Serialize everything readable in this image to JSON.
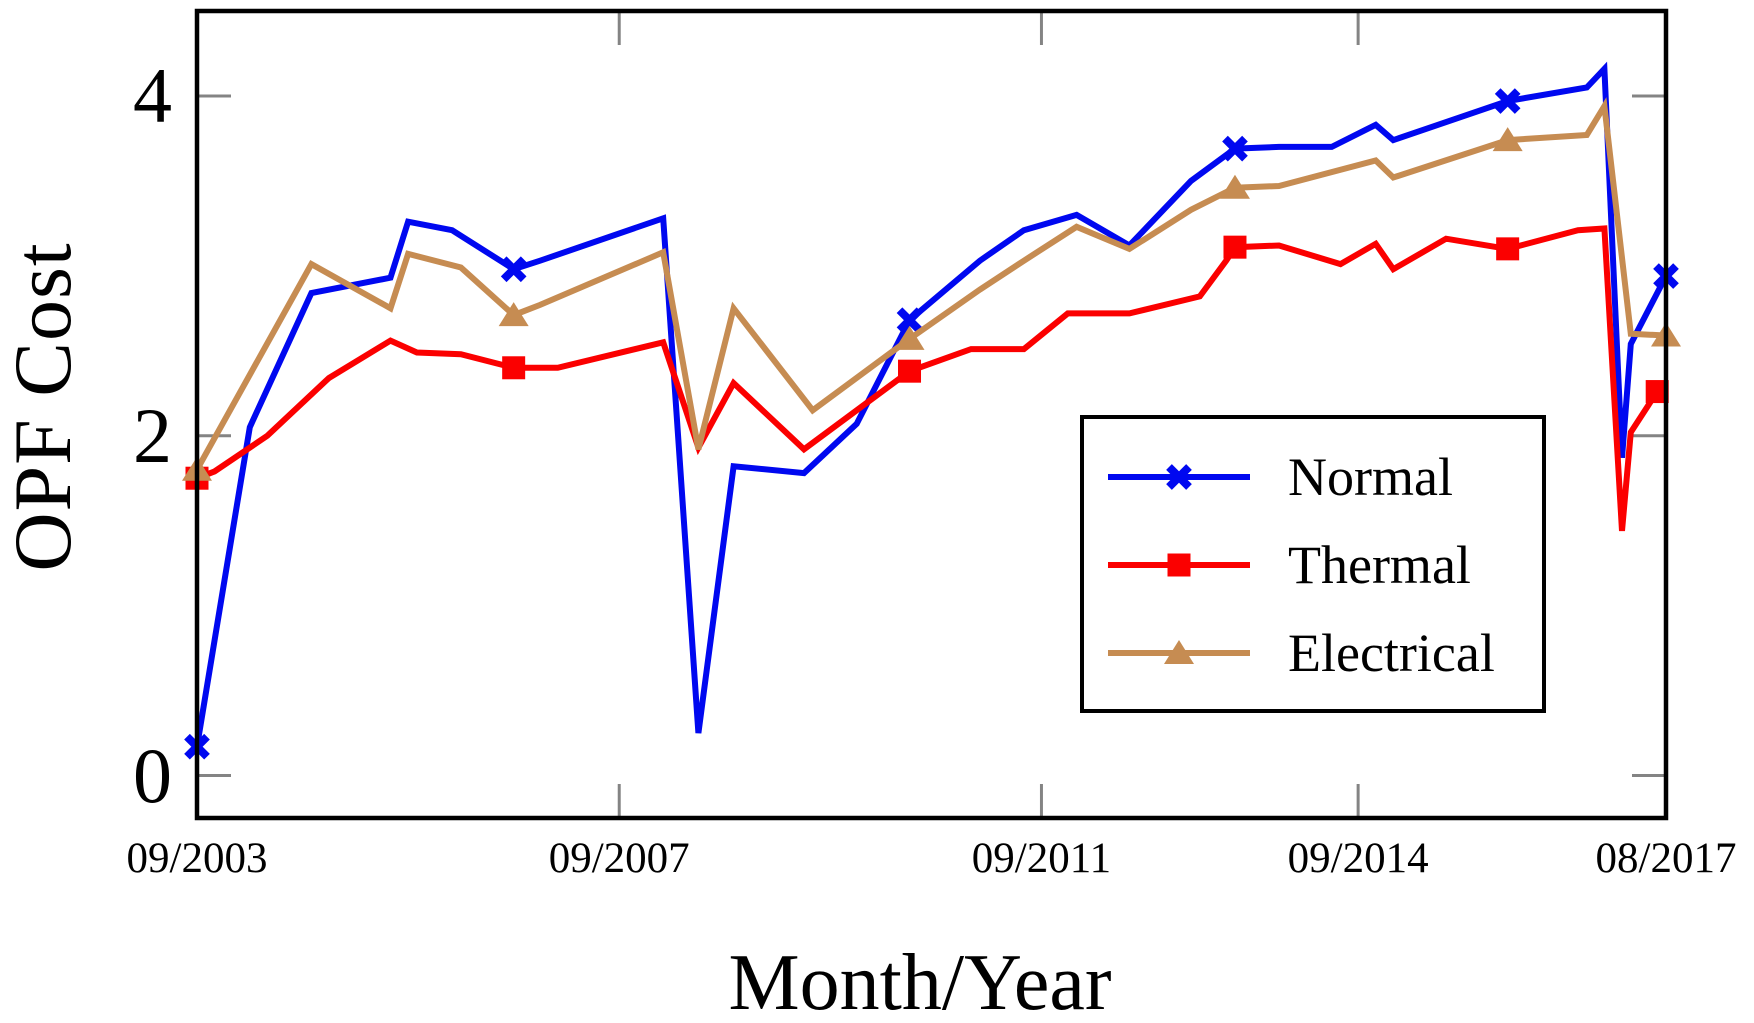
{
  "chart_data": {
    "type": "line",
    "title": "",
    "xlabel": "Month/Year",
    "ylabel": "OPF Cost",
    "x_axis": {
      "unit": "months since 09/2003",
      "xlim_months": [
        0,
        167
      ],
      "ticks": [
        {
          "m": 0,
          "label": "09/2003"
        },
        {
          "m": 48,
          "label": "09/2007"
        },
        {
          "m": 96,
          "label": "09/2011"
        },
        {
          "m": 132,
          "label": "09/2014"
        },
        {
          "m": 167,
          "label": "08/2017"
        }
      ]
    },
    "y_axis": {
      "ylim": [
        -0.25,
        4.5
      ],
      "ticks": [
        {
          "v": 0,
          "label": "0"
        },
        {
          "v": 2,
          "label": "2"
        },
        {
          "v": 4,
          "label": "4"
        }
      ]
    },
    "grid": false,
    "legend_position": "inside lower right",
    "axis_color": "#000000",
    "tick_color": "#848484",
    "series": [
      {
        "name": "Normal",
        "color": "#0008f0",
        "marker": "x",
        "points": [
          [
            0,
            0.17
          ],
          [
            6,
            2.05
          ],
          [
            13,
            2.84
          ],
          [
            22,
            2.93
          ],
          [
            24,
            3.26
          ],
          [
            29,
            3.21
          ],
          [
            36,
            2.98
          ],
          [
            39,
            3.03
          ],
          [
            53,
            3.28
          ],
          [
            57,
            0.25
          ],
          [
            61,
            1.82
          ],
          [
            69,
            1.78
          ],
          [
            75,
            2.07
          ],
          [
            81,
            2.68
          ],
          [
            89,
            3.03
          ],
          [
            94,
            3.21
          ],
          [
            100,
            3.3
          ],
          [
            106,
            3.12
          ],
          [
            113,
            3.5
          ],
          [
            118,
            3.69
          ],
          [
            123,
            3.7
          ],
          [
            129,
            3.7
          ],
          [
            134,
            3.83
          ],
          [
            136,
            3.74
          ],
          [
            149,
            3.97
          ],
          [
            158,
            4.05
          ],
          [
            160,
            4.16
          ],
          [
            162,
            1.87
          ],
          [
            163,
            2.54
          ],
          [
            167,
            2.94
          ]
        ],
        "marker_months": [
          0,
          36,
          81,
          118,
          149,
          167
        ]
      },
      {
        "name": "Thermal",
        "color": "#fb0000",
        "marker": "square",
        "points": [
          [
            0,
            1.75
          ],
          [
            2,
            1.79
          ],
          [
            8,
            2.0
          ],
          [
            15,
            2.34
          ],
          [
            22,
            2.56
          ],
          [
            25,
            2.49
          ],
          [
            30,
            2.48
          ],
          [
            36,
            2.4
          ],
          [
            41,
            2.4
          ],
          [
            53,
            2.55
          ],
          [
            57,
            1.93
          ],
          [
            61,
            2.31
          ],
          [
            69,
            1.92
          ],
          [
            81,
            2.38
          ],
          [
            88,
            2.51
          ],
          [
            94,
            2.51
          ],
          [
            99,
            2.72
          ],
          [
            106,
            2.72
          ],
          [
            114,
            2.82
          ],
          [
            117,
            3.03
          ],
          [
            118,
            3.11
          ],
          [
            123,
            3.12
          ],
          [
            130,
            3.01
          ],
          [
            134,
            3.13
          ],
          [
            136,
            2.98
          ],
          [
            142,
            3.16
          ],
          [
            149,
            3.1
          ],
          [
            157,
            3.21
          ],
          [
            160,
            3.22
          ],
          [
            162,
            1.44
          ],
          [
            163,
            2.02
          ],
          [
            166,
            2.26
          ],
          [
            167,
            2.28
          ]
        ],
        "marker_months": [
          0,
          36,
          81,
          118,
          149,
          166
        ]
      },
      {
        "name": "Electrical",
        "color": "#c68c52",
        "marker": "triangle",
        "points": [
          [
            0,
            1.8
          ],
          [
            13,
            3.01
          ],
          [
            22,
            2.75
          ],
          [
            24,
            3.07
          ],
          [
            30,
            2.99
          ],
          [
            36,
            2.71
          ],
          [
            39,
            2.77
          ],
          [
            53,
            3.08
          ],
          [
            57,
            1.92
          ],
          [
            61,
            2.75
          ],
          [
            70,
            2.15
          ],
          [
            81,
            2.57
          ],
          [
            89,
            2.86
          ],
          [
            94,
            3.03
          ],
          [
            100,
            3.23
          ],
          [
            106,
            3.1
          ],
          [
            113,
            3.33
          ],
          [
            118,
            3.46
          ],
          [
            123,
            3.47
          ],
          [
            134,
            3.62
          ],
          [
            136,
            3.52
          ],
          [
            149,
            3.74
          ],
          [
            158,
            3.77
          ],
          [
            160,
            3.94
          ],
          [
            163,
            2.6
          ],
          [
            167,
            2.59
          ]
        ],
        "marker_months": [
          0,
          36,
          81,
          118,
          149,
          167
        ]
      }
    ]
  }
}
